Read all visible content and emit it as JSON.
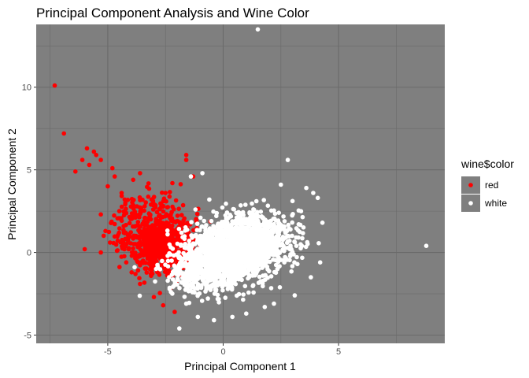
{
  "chart_data": {
    "type": "scatter",
    "title": "Principal Component Analysis and Wine Color",
    "xlabel": "Principal Component 1",
    "ylabel": "Principal Component 2",
    "xlim": [
      -8.1,
      9.6
    ],
    "ylim": [
      -5.5,
      13.8
    ],
    "x_ticks": [
      -5,
      0,
      5
    ],
    "x_tick_labels": [
      "-5",
      "0",
      "5"
    ],
    "y_ticks": [
      -5,
      0,
      5,
      10
    ],
    "y_tick_labels": [
      "-5",
      "0",
      "5",
      "10"
    ],
    "grid": true,
    "panel_background": "#7f7f7f",
    "grid_color": "#6a6a6a",
    "legend": {
      "title": "wine$color",
      "position": "right",
      "entries": [
        {
          "label": "red",
          "color": "#ff0000"
        },
        {
          "label": "white",
          "color": "#ffffff"
        }
      ]
    },
    "series": [
      {
        "name": "red",
        "color": "#ff0000",
        "points": [
          [
            -7.3,
            10.1
          ],
          [
            -6.9,
            7.2
          ],
          [
            -5.9,
            6.3
          ],
          [
            -5.6,
            6.1
          ],
          [
            -5.5,
            5.9
          ],
          [
            -5.3,
            5.6
          ],
          [
            -6.1,
            5.6
          ],
          [
            -5.8,
            5.3
          ],
          [
            -6.4,
            4.9
          ],
          [
            -4.8,
            5.1
          ],
          [
            -4.7,
            4.6
          ],
          [
            -5.0,
            4.0
          ],
          [
            -4.4,
            3.6
          ],
          [
            -3.9,
            4.4
          ],
          [
            -3.6,
            4.8
          ],
          [
            -5.3,
            2.3
          ],
          [
            -5.1,
            1.3
          ],
          [
            -4.9,
            0.6
          ],
          [
            -6.0,
            0.2
          ],
          [
            -5.3,
            0.0
          ],
          [
            -4.6,
            0.1
          ],
          [
            -4.2,
            -0.6
          ],
          [
            -3.8,
            -1.3
          ],
          [
            -3.6,
            -1.9
          ],
          [
            -3.0,
            -2.7
          ],
          [
            -2.6,
            -3.2
          ],
          [
            -2.1,
            -3.6
          ],
          [
            -1.6,
            5.9
          ],
          [
            -1.6,
            5.6
          ],
          [
            -1.3,
            4.6
          ],
          [
            -3.4,
            2.8
          ],
          [
            -3.1,
            3.2
          ],
          [
            -2.5,
            3.6
          ],
          [
            -2.2,
            4.2
          ],
          [
            -3.8,
            1.6
          ],
          [
            -1.5,
            1.2
          ],
          [
            -1.3,
            0.4
          ],
          [
            -1.6,
            -0.5
          ],
          [
            -1.8,
            -1.4
          ],
          [
            -2.3,
            -2.2
          ],
          [
            1.4,
            0.3
          ],
          [
            -4.5,
            2.5
          ]
        ],
        "clusters": [
          {
            "center": [
              -2.6,
              0.5
            ],
            "spread": [
              0.7,
              0.9
            ],
            "count": 600
          },
          {
            "center": [
              -3.1,
              1.6
            ],
            "spread": [
              0.9,
              1.0
            ],
            "count": 250
          }
        ]
      },
      {
        "name": "white",
        "color": "#ffffff",
        "points": [
          [
            1.5,
            13.5
          ],
          [
            8.8,
            0.4
          ],
          [
            2.8,
            5.6
          ],
          [
            -1.9,
            -4.6
          ],
          [
            4.1,
            3.3
          ],
          [
            3.6,
            3.9
          ],
          [
            -0.9,
            4.8
          ],
          [
            -1.4,
            4.6
          ],
          [
            4.3,
            1.8
          ],
          [
            4.2,
            -0.6
          ],
          [
            3.8,
            -1.5
          ],
          [
            3.1,
            -2.6
          ],
          [
            1.8,
            -3.3
          ],
          [
            1.0,
            -3.7
          ],
          [
            -0.4,
            -4.1
          ],
          [
            -1.1,
            -3.9
          ],
          [
            -1.6,
            -3.1
          ],
          [
            2.5,
            4.1
          ],
          [
            -0.6,
            3.2
          ],
          [
            -1.2,
            2.6
          ],
          [
            3.9,
            3.6
          ],
          [
            2.2,
            -3.1
          ],
          [
            0.4,
            -3.9
          ]
        ],
        "clusters": [
          {
            "center": [
              0.3,
              -0.1
            ],
            "spread": [
              1.0,
              0.9
            ],
            "count": 1300
          },
          {
            "center": [
              1.3,
              0.9
            ],
            "spread": [
              0.9,
              0.8
            ],
            "count": 700
          },
          {
            "center": [
              -0.9,
              -1.1
            ],
            "spread": [
              0.7,
              0.7
            ],
            "count": 450
          }
        ]
      }
    ]
  }
}
